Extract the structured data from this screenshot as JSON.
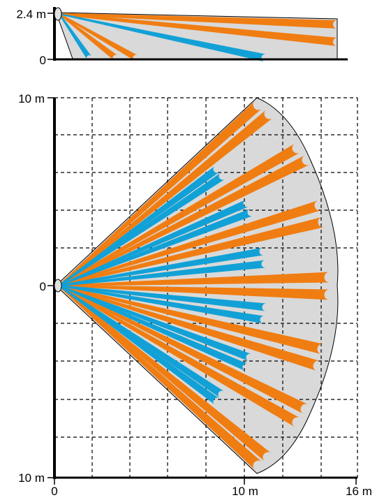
{
  "side_view": {
    "y_max_label": "2.4 m",
    "y_min_label": "0"
  },
  "top_view": {
    "y_top_label": "10 m",
    "y_mid_label": "0",
    "y_bottom_label": "10 m",
    "x_labels": [
      "0",
      "10 m",
      "16 m"
    ]
  },
  "colors": {
    "long_beam": "#f07d12",
    "short_beam": "#12a1d6",
    "coverage_fill": "#d9d9d9",
    "outline": "#000000",
    "grid": "#000000"
  },
  "chart_data": {
    "type": "diagram",
    "description_units": "meters",
    "top_view": {
      "x_range": [
        0,
        16
      ],
      "y_range": [
        -10,
        10
      ],
      "grid": true,
      "long_beam_count": 16,
      "short_beam_count": 10
    },
    "side_view": {
      "height_range": [
        0,
        2.4
      ],
      "range_m": 16
    }
  }
}
